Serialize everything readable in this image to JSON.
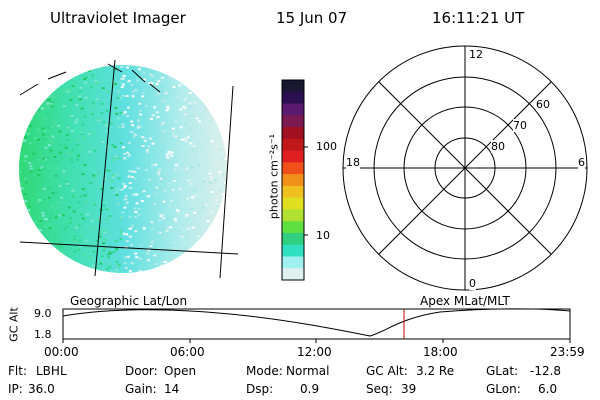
{
  "header": {
    "title": "Ultraviolet Imager",
    "date": "15 Jun 07",
    "time": "16:11:21 UT"
  },
  "colorbar": {
    "unit_label": "photon cm⁻²s⁻¹",
    "ticks": [
      "100",
      "10"
    ],
    "colors": [
      "#181830",
      "#2a1050",
      "#5a1a70",
      "#7a1a50",
      "#a01020",
      "#c01818",
      "#e02020",
      "#f0501a",
      "#f0901a",
      "#f0c020",
      "#e0e020",
      "#b0e030",
      "#60e040",
      "#30d080",
      "#30e0c0",
      "#a0f0f0",
      "#e0f0f0"
    ]
  },
  "polar_plot": {
    "hour_labels": {
      "top": "12",
      "left": "18",
      "right": "6",
      "bottom": "0"
    },
    "lat_labels": [
      "60",
      "70",
      "80"
    ]
  },
  "orbit": {
    "left_title": "Geographic Lat/Lon",
    "right_title": "Apex MLat/MLT",
    "y_axis_label": "GC Alt",
    "y_ticks": [
      "9.0",
      "1.8"
    ],
    "x_ticks": [
      "00:00",
      "06:00",
      "12:00",
      "18:00",
      "23:59"
    ],
    "current_marker_color": "#c00000"
  },
  "footer": {
    "flt_label": "Flt:",
    "flt_value": "LBHL",
    "door_label": "Door:",
    "door_value": "Open",
    "mode_label": "Mode:",
    "mode_value": "Normal",
    "gcalt_label": "GC Alt:",
    "gcalt_value": "3.2 Re",
    "glat_label": "GLat:",
    "glat_value": "-12.8",
    "ip_label": "IP:",
    "ip_value": "36.0",
    "gain_label": "Gain:",
    "gain_value": "14",
    "dsp_label": "Dsp:",
    "dsp_value": "0.9",
    "seq_label": "Seq:",
    "seq_value": "39",
    "glon_label": "GLon:",
    "glon_value": "6.0"
  }
}
